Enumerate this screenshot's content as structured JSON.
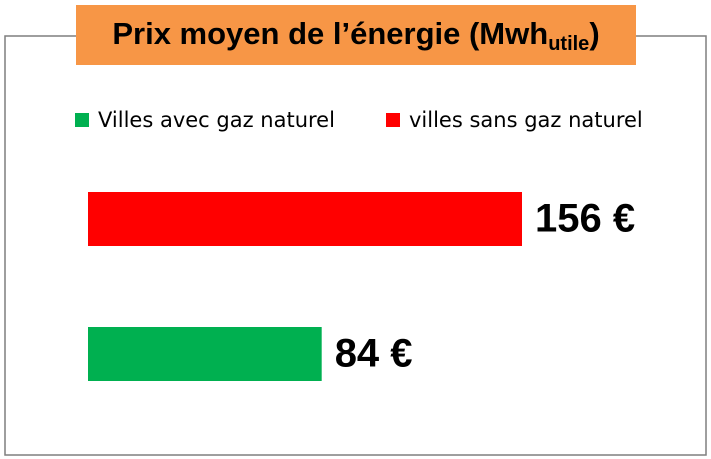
{
  "chart_data": {
    "type": "bar",
    "title": {
      "text": "Prix moyen de l’énergie (Mwh",
      "subscript": "utile",
      "end": ")"
    },
    "series": [
      {
        "name": "Villes avec gaz naturel",
        "color": "#00b050",
        "values": [
          84
        ],
        "value_labels": [
          "84 €"
        ]
      },
      {
        "name": "villes sans gaz naturel",
        "color": "#ff0000",
        "values": [
          156
        ],
        "value_labels": [
          "156 €"
        ]
      }
    ]
  }
}
